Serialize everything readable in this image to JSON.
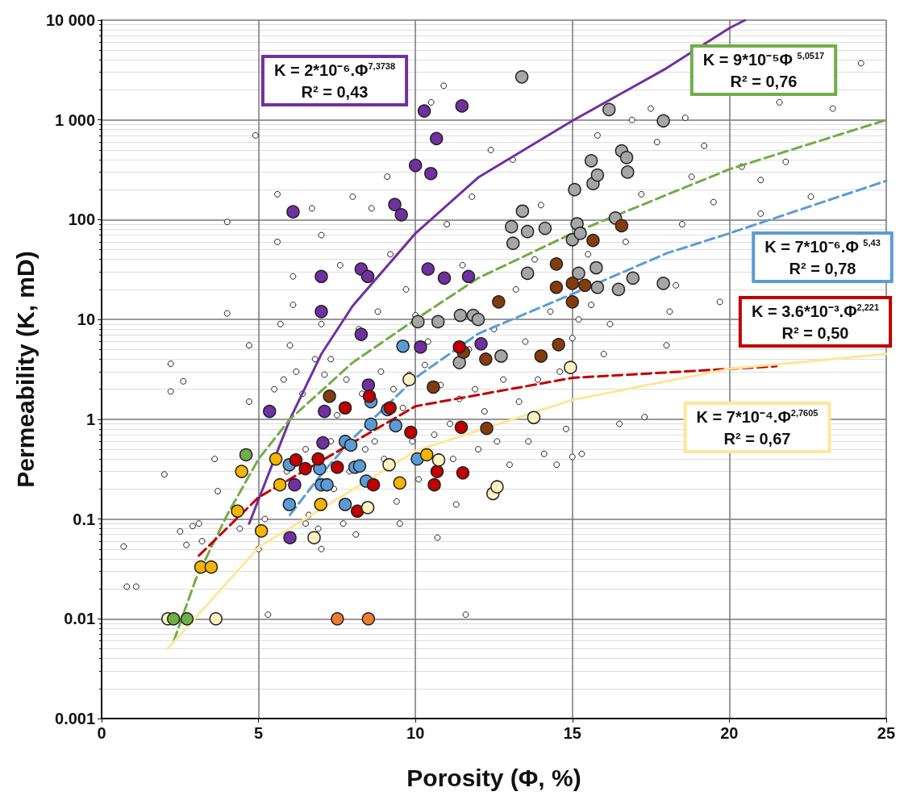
{
  "chart_data": {
    "type": "scatter",
    "xlabel": "Porosity (Φ, %)",
    "ylabel": "Permeability (K, mD)",
    "xlim": [
      0,
      25
    ],
    "xticks": [
      0,
      5,
      10,
      15,
      20,
      25
    ],
    "ylim": [
      0.001,
      10000
    ],
    "yticks": [
      0.001,
      0.01,
      0.1,
      1,
      10,
      100,
      {
        "value": 1000,
        "label": "1 000"
      },
      {
        "value": 10000,
        "label": "10 000"
      }
    ],
    "log": "y",
    "grid": true,
    "marker": "circle",
    "annotations": [
      "K = 2*10⁻⁶.Φ$^{7,3738}$\nR² = 0,43",
      "K = 9*10⁻⁵Φ $^{5,0517}$\nR² = 0,76",
      "K = 7*10⁻⁶.Φ $^{5,43}$\nR² = 0,78",
      "K = 3.6*10⁻³.Φ$^{2,221}$\nR² = 0,50",
      "K = 7*10⁻⁴.Φ$^{2,7605}$\nR² = 0,67"
    ],
    "series": [
      {
        "color": "#ffffff",
        "x": [
          0.7,
          0.8,
          1.1,
          2.0,
          2.2,
          2.2,
          2.6,
          2.5,
          2.7,
          2.9,
          3.1,
          3.2,
          3.6,
          3.7,
          4.0,
          4.0,
          4.2,
          4.4,
          4.7,
          4.7,
          4.9,
          5.0,
          5.2,
          5.3,
          5.6,
          5.6,
          5.5,
          5.7,
          5.8,
          5.9,
          6.0,
          6.1,
          6.1,
          6.2,
          6.4,
          6.5,
          6.5,
          6.6,
          6.7,
          6.8,
          6.9,
          7.0,
          7.0,
          7.0,
          7.1,
          7.3,
          7.3,
          7.4,
          7.5,
          7.6,
          7.7,
          7.8,
          7.9,
          8.0,
          8.1,
          8.2,
          8.3,
          8.4,
          8.6,
          8.7,
          8.8,
          8.9,
          9.0,
          9.1,
          9.2,
          9.3,
          9.4,
          9.5,
          9.6,
          9.7,
          9.8,
          9.9,
          10.0,
          10.1,
          10.3,
          10.4,
          10.5,
          10.6,
          10.7,
          10.8,
          10.9,
          11.0,
          11.1,
          11.2,
          11.3,
          11.4,
          11.5,
          11.6,
          11.7,
          11.8,
          11.9,
          12.0,
          12.2,
          12.4,
          12.5,
          12.6,
          12.8,
          13.0,
          13.1,
          13.2,
          13.3,
          13.5,
          13.6,
          13.8,
          13.9,
          14.0,
          14.1,
          14.3,
          14.5,
          14.6,
          14.8,
          15.0,
          15.0,
          15.2,
          15.3,
          15.5,
          15.6,
          15.8,
          16.0,
          16.2,
          16.5,
          16.7,
          16.9,
          17.2,
          17.3,
          17.5,
          17.7,
          18.0,
          18.1,
          18.3,
          18.5,
          18.6,
          18.8,
          19.2,
          19.5,
          19.7,
          20.4,
          21.0,
          21.0,
          21.6,
          21.8,
          22.6,
          23.3,
          24.2
        ],
        "values": [
          0.053,
          0.021,
          0.021,
          0.28,
          3.6,
          1.9,
          2.4,
          0.075,
          0.055,
          0.085,
          0.09,
          0.06,
          0.4,
          0.19,
          95,
          11.5,
          0.13,
          0.08,
          1.5,
          5.5,
          700,
          0.05,
          0.1,
          0.011,
          180,
          60,
          2,
          9,
          2.5,
          0.3,
          5.5,
          27,
          14,
          3,
          1.8,
          0.5,
          0.09,
          0.11,
          130,
          4,
          0.08,
          0.05,
          70,
          9,
          2.8,
          0.6,
          4,
          0.2,
          1.1,
          35,
          0.09,
          2.5,
          0.3,
          170,
          0.07,
          8,
          1.8,
          0.5,
          130,
          0.6,
          12,
          3,
          0.4,
          270,
          45,
          2,
          0.15,
          0.09,
          1.3,
          20,
          2.8,
          0.6,
          11,
          0.25,
          3.5,
          6,
          1500,
          0.7,
          0.065,
          2.2,
          2200,
          90,
          0.9,
          0.4,
          0.14,
          1.6,
          35,
          0.011,
          5,
          170,
          2,
          0.5,
          1.2,
          500,
          8,
          0.6,
          2.5,
          0.35,
          400,
          20,
          1.5,
          6,
          0.6,
          40,
          2.5,
          140,
          0.45,
          12,
          0.35,
          3,
          0.8,
          6.5,
          0.42,
          10,
          0.45,
          45,
          14,
          700,
          4.5,
          9,
          0.9,
          60,
          1000,
          180,
          1.05,
          1300,
          600,
          5.5,
          12,
          22,
          90,
          1050,
          270,
          550,
          150,
          15,
          340,
          250,
          115,
          1500,
          380,
          170,
          1300,
          3700
        ]
      },
      {
        "color": "#7030a0",
        "x": [
          5.35,
          6.1,
          7.0,
          7.0,
          7.1,
          7.05,
          6.0,
          6.15,
          8.27,
          8.48,
          8.27,
          8.5,
          9.34,
          9.55,
          10.0,
          10.28,
          10.49,
          10.67,
          10.4,
          10.16,
          10.92,
          11.48,
          11.69,
          12.09
        ],
        "values": [
          1.2,
          120,
          12,
          27,
          1.2,
          0.58,
          0.065,
          0.22,
          32,
          27,
          7.1,
          2.2,
          142,
          112,
          350,
          1230,
          290,
          650,
          32,
          5.3,
          26,
          1380,
          27,
          5.7
        ]
      },
      {
        "color": "#a6a6a6",
        "x": [
          13.39,
          16.17,
          17.9,
          16.57,
          16.73,
          16.76,
          15.66,
          15.8,
          15.6,
          15.07,
          15.0,
          15.15,
          15.25,
          15.2,
          15.76,
          15.8,
          16.47,
          16.93,
          17.9,
          16.37,
          14.13,
          13.57,
          13.11,
          13.06,
          13.41,
          13.57,
          11.43,
          11.84,
          12.0,
          10.72,
          10.08,
          12.73,
          11.4
        ],
        "values": [
          2700,
          1270,
          980,
          490,
          420,
          300,
          230,
          280,
          390,
          200,
          63,
          91,
          73,
          29,
          33,
          21,
          20,
          26,
          23,
          104,
          82,
          76,
          58,
          85,
          122,
          29,
          11,
          11,
          10,
          9.5,
          9.5,
          4.3,
          3.7
        ]
      },
      {
        "color": "#843c0c",
        "x": [
          7.26,
          10.57,
          11.53,
          12.24,
          12.65,
          14.0,
          14.49,
          14.49,
          15.0,
          15.4,
          15.0,
          14.56,
          15.66,
          16.57,
          12.27
        ],
        "values": [
          1.7,
          2.1,
          4.7,
          4.0,
          15,
          4.3,
          36,
          21,
          23,
          22,
          15,
          5.6,
          62,
          87,
          0.81
        ]
      },
      {
        "color": "#5b9bd5",
        "x": [
          9.6,
          8.58,
          8.58,
          9.11,
          9.37,
          7.76,
          7.94,
          8.07,
          8.22,
          7.76,
          8.43,
          7.0,
          7.18,
          5.98,
          5.98,
          6.95,
          10.06
        ],
        "values": [
          5.4,
          1.5,
          0.89,
          1.25,
          0.86,
          0.6,
          0.55,
          0.33,
          0.34,
          0.14,
          0.24,
          0.22,
          0.22,
          0.35,
          0.14,
          0.32,
          0.4
        ]
      },
      {
        "color": "#c00000",
        "x": [
          8.53,
          7.76,
          9.19,
          9.85,
          10.69,
          10.6,
          11.4,
          11.46,
          11.51,
          6.9,
          7.51,
          8.15,
          8.66,
          6.49,
          6.19
        ],
        "values": [
          1.7,
          1.3,
          1.3,
          0.74,
          0.3,
          0.22,
          5.3,
          0.83,
          0.29,
          0.4,
          0.33,
          0.12,
          0.22,
          0.32,
          0.39
        ]
      },
      {
        "color": "#f5b400",
        "x": [
          4.46,
          4.33,
          5.55,
          5.68,
          5.09,
          6.98,
          3.16,
          3.49,
          9.5,
          10.36
        ],
        "values": [
          0.3,
          0.12,
          0.4,
          0.22,
          0.076,
          0.14,
          0.033,
          0.033,
          0.23,
          0.44
        ]
      },
      {
        "color": "#fff2c0",
        "x": [
          2.11,
          3.64,
          6.77,
          8.48,
          9.16,
          9.8,
          10.74,
          12.47,
          12.6,
          13.77,
          14.94
        ],
        "values": [
          0.01,
          0.01,
          0.065,
          0.13,
          0.35,
          2.5,
          0.39,
          0.18,
          0.21,
          1.04,
          3.3
        ]
      },
      {
        "color": "#70ad47",
        "x": [
          4.6,
          2.29,
          2.72
        ],
        "values": [
          0.44,
          0.01,
          0.01
        ]
      },
      {
        "color": "#ed7d31",
        "x": [
          7.51,
          8.5
        ],
        "values": [
          0.01,
          0.01
        ]
      },
      {
        "type": "line",
        "marker": "none",
        "color": "#7030a0",
        "line_style": "solid",
        "x": [
          4.7,
          6,
          7,
          8,
          10,
          12,
          15,
          18,
          20,
          20.5
        ],
        "values": [
          0.09,
          1,
          4.5,
          13.7,
          73,
          265,
          980,
          3300,
          8300,
          10000
        ]
      },
      {
        "type": "line",
        "marker": "none",
        "color": "#70ad47",
        "line_style": "dashed",
        "x": [
          2.3,
          3,
          4,
          5,
          6,
          8,
          10,
          12,
          15,
          20,
          25
        ],
        "values": [
          0.006,
          0.025,
          0.11,
          0.4,
          1.0,
          3.7,
          10,
          26,
          73,
          320,
          1000
        ]
      },
      {
        "type": "line",
        "marker": "none",
        "color": "#5b9bd5",
        "line_style": "dashed",
        "x": [
          6,
          7,
          8,
          10,
          12,
          15,
          18,
          20,
          25
        ],
        "values": [
          0.11,
          0.28,
          0.64,
          2.6,
          7.2,
          18,
          46,
          73,
          245
        ]
      },
      {
        "type": "line",
        "marker": "none",
        "color": "#c00000",
        "line_style": "dashed",
        "x": [
          3.1,
          5,
          10,
          15,
          21.5
        ],
        "values": [
          0.043,
          0.165,
          1.35,
          2.6,
          3.4
        ]
      },
      {
        "type": "line",
        "marker": "none",
        "color": "#ffe699",
        "line_style": "solid",
        "x": [
          2.1,
          5,
          10,
          15,
          20,
          25
        ],
        "values": [
          0.005,
          0.052,
          0.48,
          1.56,
          3.2,
          4.5
        ]
      }
    ]
  }
}
